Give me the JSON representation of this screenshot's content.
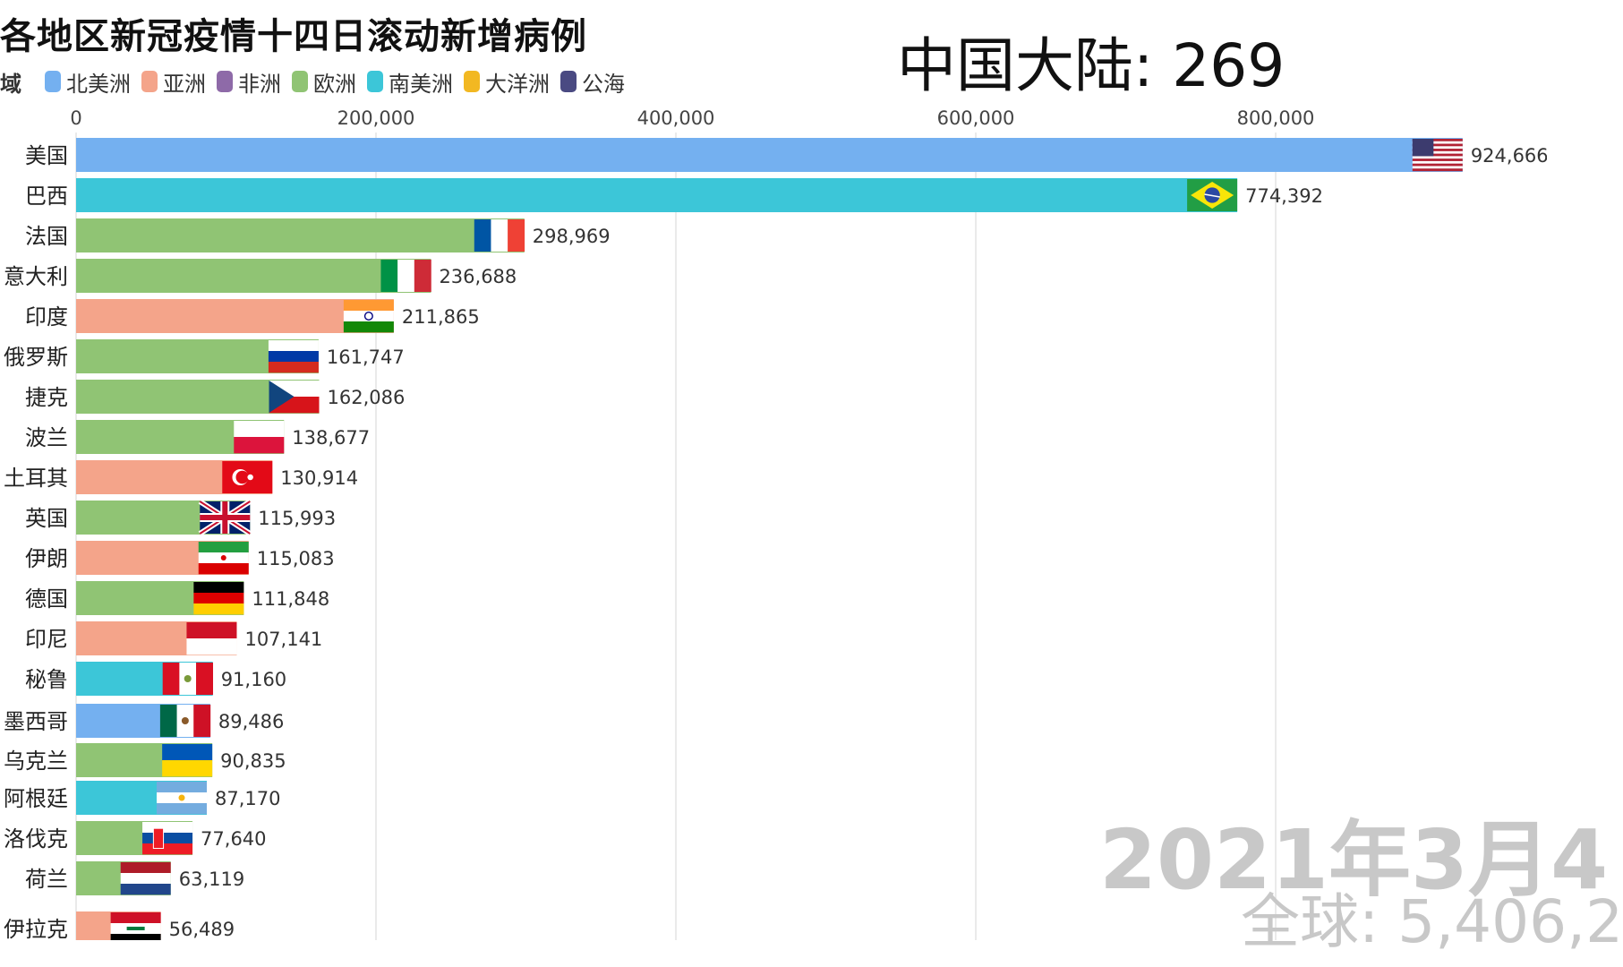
{
  "header": {
    "title": "各地区新冠疫情十四日滚动新增病例",
    "china_label": "中国大陆: 269",
    "legend_lead": "域"
  },
  "legend": [
    {
      "label": "北美洲",
      "color": "#74b0f0"
    },
    {
      "label": "亚洲",
      "color": "#f4a48a"
    },
    {
      "label": "非洲",
      "color": "#8e6aa8"
    },
    {
      "label": "欧洲",
      "color": "#90c474"
    },
    {
      "label": "南美洲",
      "color": "#3cc6d8"
    },
    {
      "label": "大洋洲",
      "color": "#f2b822"
    },
    {
      "label": "公海",
      "color": "#4a4a82"
    }
  ],
  "footer": {
    "date": "2021年3月4",
    "total": "全球: 5,406,2"
  },
  "chart_data": {
    "type": "bar",
    "orientation": "horizontal",
    "xlim": [
      0,
      924666
    ],
    "x_ticks": [
      0,
      200000,
      400000,
      600000,
      800000
    ],
    "x_tick_labels": [
      "0",
      "200,000",
      "400,000",
      "600,000",
      "800,000"
    ],
    "grid": true,
    "value_labels": true,
    "categories": [
      "美国",
      "巴西",
      "法国",
      "意大利",
      "印度",
      "俄罗斯",
      "捷克",
      "波兰",
      "土耳其",
      "英国",
      "伊朗",
      "德国",
      "印尼",
      "秘鲁",
      "墨西哥",
      "乌克兰",
      "阿根廷",
      "洛伐克",
      "荷兰",
      "伊拉克"
    ],
    "values": [
      924666,
      774392,
      298969,
      236688,
      211865,
      161747,
      162086,
      138677,
      130914,
      115993,
      115083,
      111848,
      107141,
      91160,
      89486,
      90835,
      87170,
      77640,
      63119,
      56489
    ],
    "value_text": [
      "924,666",
      "774,392",
      "298,969",
      "236,688",
      "211,865",
      "161,747",
      "162,086",
      "138,677",
      "130,914",
      "115,993",
      "115,083",
      "111,848",
      "107,141",
      "91,160",
      "89,486",
      "90,835",
      "87,170",
      "77,640",
      "63,119",
      "56,489"
    ],
    "region": [
      "北美洲",
      "南美洲",
      "欧洲",
      "欧洲",
      "亚洲",
      "欧洲",
      "欧洲",
      "欧洲",
      "亚洲",
      "欧洲",
      "亚洲",
      "欧洲",
      "亚洲",
      "南美洲",
      "北美洲",
      "欧洲",
      "南美洲",
      "欧洲",
      "欧洲",
      "亚洲"
    ],
    "flag_icon": [
      "us-flag-icon",
      "brazil-flag-icon",
      "france-flag-icon",
      "italy-flag-icon",
      "india-flag-icon",
      "russia-flag-icon",
      "czech-flag-icon",
      "poland-flag-icon",
      "turkey-flag-icon",
      "uk-flag-icon",
      "iran-flag-icon",
      "germany-flag-icon",
      "indonesia-flag-icon",
      "peru-flag-icon",
      "mexico-flag-icon",
      "ukraine-flag-icon",
      "argentina-flag-icon",
      "slovakia-flag-icon",
      "netherlands-flag-icon",
      "iraq-flag-icon"
    ]
  }
}
